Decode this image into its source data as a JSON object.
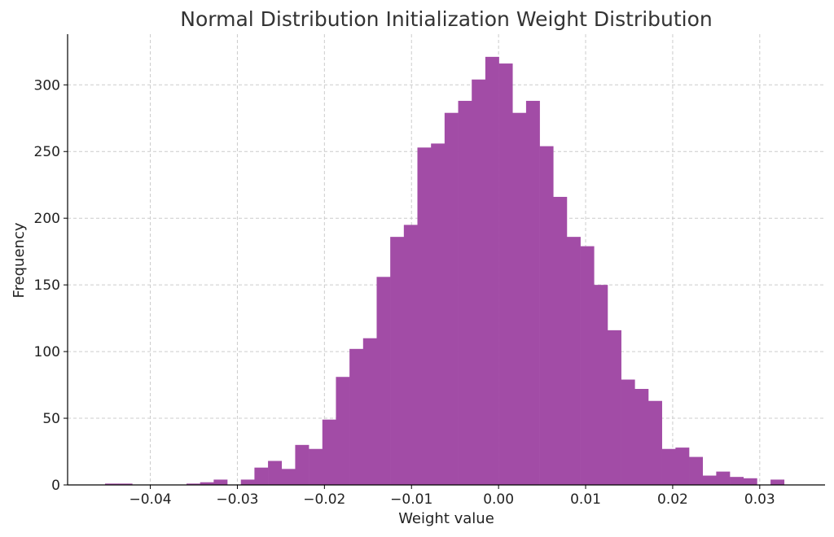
{
  "chart_data": {
    "type": "bar",
    "title": "Normal Distribution Initialization Weight Distribution",
    "xlabel": "Weight value",
    "ylabel": "Frequency",
    "xlim": [
      -0.0495,
      0.0375
    ],
    "ylim": [
      0,
      338
    ],
    "grid": true,
    "bar_color": "#a24ca6",
    "xticks": [
      -0.04,
      -0.03,
      -0.02,
      -0.01,
      0.0,
      0.01,
      0.02,
      0.03
    ],
    "xtick_labels": [
      "−0.04",
      "−0.03",
      "−0.02",
      "−0.01",
      "0.00",
      "0.01",
      "0.02",
      "0.03"
    ],
    "yticks": [
      0,
      50,
      100,
      150,
      200,
      250,
      300
    ],
    "ytick_labels": [
      "0",
      "50",
      "100",
      "150",
      "200",
      "250",
      "300"
    ],
    "bin_start": -0.0452,
    "bin_width": 0.00156,
    "counts": [
      1,
      1,
      0,
      0,
      0,
      0,
      1,
      2,
      4,
      0,
      4,
      13,
      18,
      12,
      30,
      27,
      49,
      81,
      102,
      110,
      156,
      186,
      195,
      253,
      256,
      279,
      288,
      304,
      321,
      316,
      279,
      288,
      254,
      216,
      186,
      179,
      150,
      116,
      79,
      72,
      63,
      27,
      28,
      21,
      7,
      10,
      6,
      5,
      0,
      4
    ]
  }
}
